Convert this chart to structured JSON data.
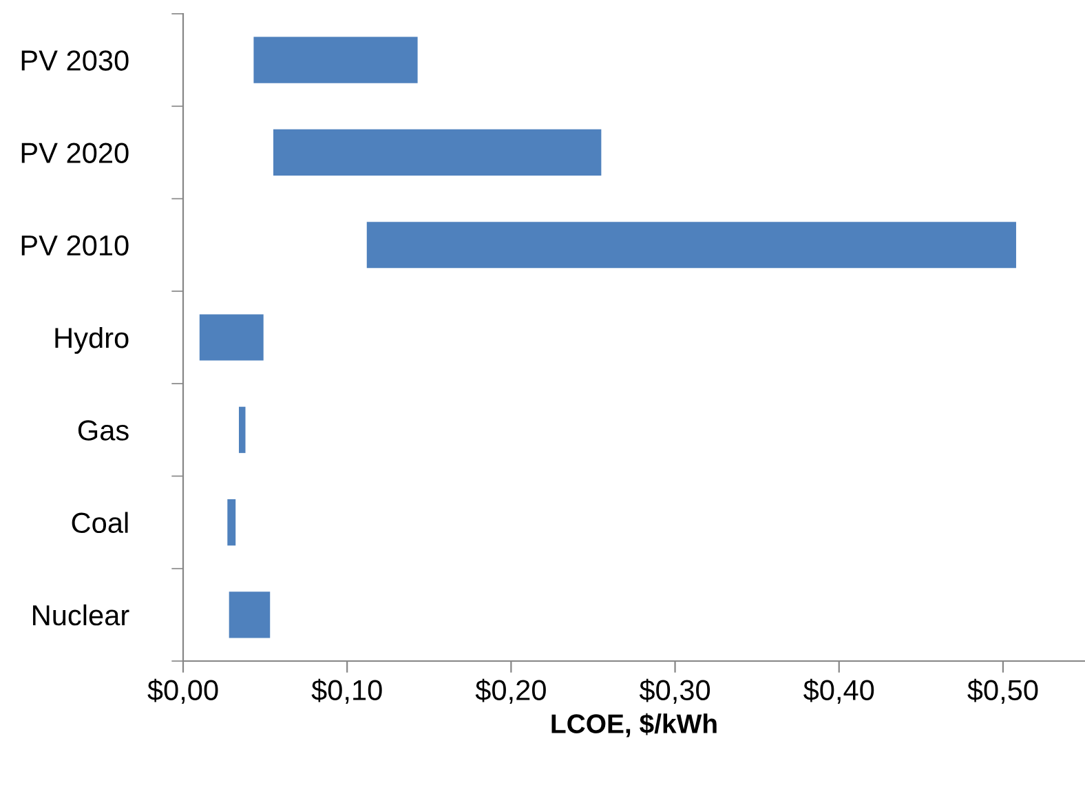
{
  "chart_data": {
    "type": "bar",
    "orientation": "horizontal",
    "xlabel": "LCOE, $/kWh",
    "categories": [
      "PV 2030",
      "PV 2020",
      "PV 2010",
      "Hydro",
      "Gas",
      "Coal",
      "Nuclear"
    ],
    "base": [
      0.043,
      0.055,
      0.112,
      0.01,
      0.034,
      0.027,
      0.028
    ],
    "values": [
      0.1,
      0.2,
      0.396,
      0.039,
      0.004,
      0.005,
      0.025
    ],
    "color": "#4f81bd",
    "xlim": [
      0,
      0.55
    ],
    "xticks": [
      {
        "value": 0,
        "label": "$0,00"
      },
      {
        "value": 0.1,
        "label": "$0,10"
      },
      {
        "value": 0.2,
        "label": "$0,20"
      },
      {
        "value": 0.3,
        "label": "$0,30"
      },
      {
        "value": 0.4,
        "label": "$0,40"
      },
      {
        "value": 0.5,
        "label": "$0,50"
      }
    ],
    "grid": false,
    "legend": false
  }
}
